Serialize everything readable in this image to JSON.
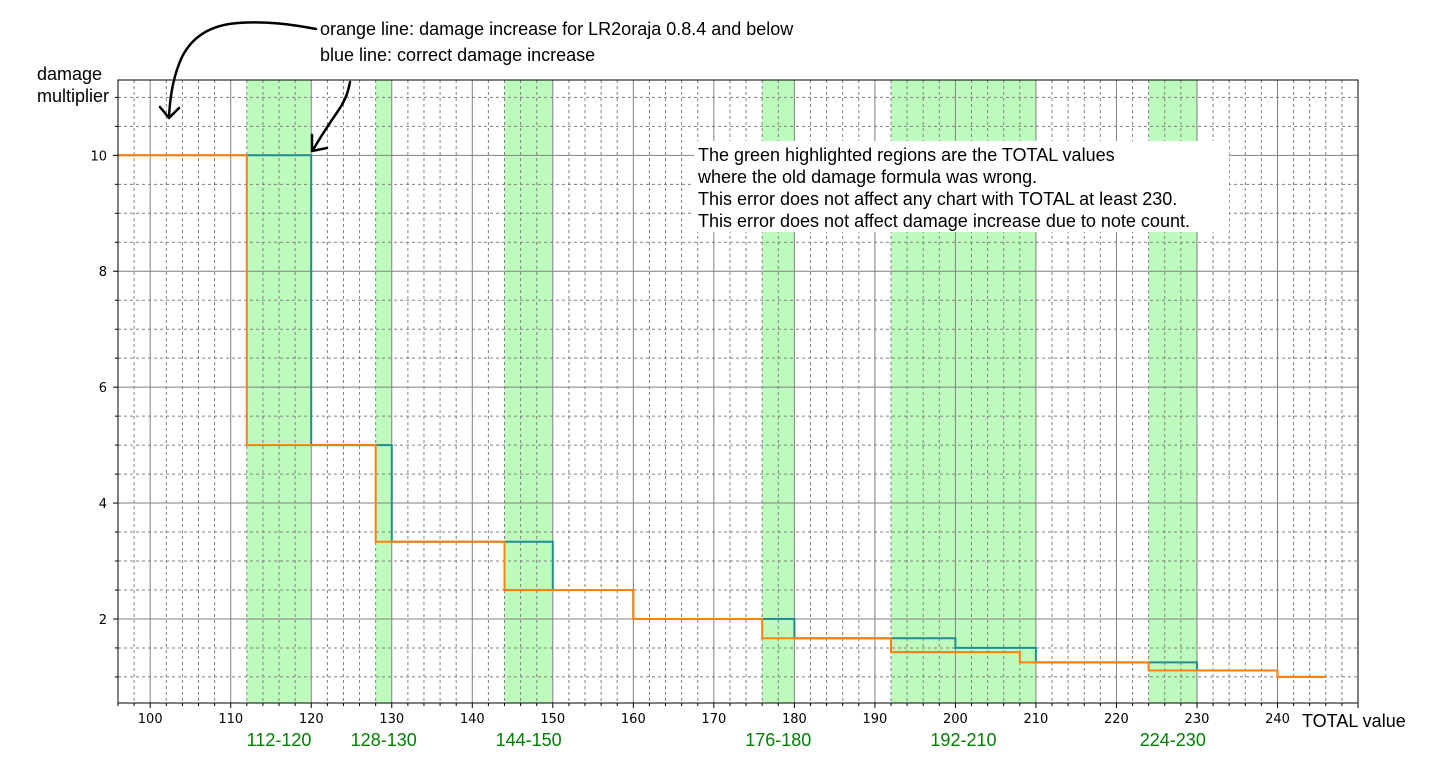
{
  "colors": {
    "orange": "#ff7f0e",
    "blue": "#1f8f8f",
    "highlight": "#bdfcbd",
    "region_label": "#008000",
    "grid_major": "#808080",
    "grid_minor": "#808080"
  },
  "annotations": {
    "orange_note": "orange line: damage increase for LR2oraja 0.8.4 and below",
    "blue_note": "blue line: correct damage increase",
    "arrow_icon": "hand-drawn-arrow-icon"
  },
  "note": {
    "lines": [
      "The green highlighted regions are the TOTAL values",
      "where the old damage formula was wrong.",
      "This error does not affect any chart with TOTAL at least 230.",
      "This error does not affect damage increase due to note count."
    ]
  },
  "chart_data": {
    "type": "line",
    "step": "post",
    "xlabel": "TOTAL value",
    "ylabel": "damage\nmultiplier",
    "xlim": [
      96,
      250
    ],
    "ylim": [
      0.55,
      11.3
    ],
    "x_major_ticks": [
      100,
      110,
      120,
      130,
      140,
      150,
      160,
      170,
      180,
      190,
      200,
      210,
      220,
      230,
      240
    ],
    "y_major_ticks": [
      2,
      4,
      6,
      8,
      10
    ],
    "grid": true,
    "highlight_regions": [
      {
        "label": "112-120",
        "from": 112,
        "to": 120
      },
      {
        "label": "128-130",
        "from": 128,
        "to": 130
      },
      {
        "label": "144-150",
        "from": 144,
        "to": 150
      },
      {
        "label": "176-180",
        "from": 176,
        "to": 180
      },
      {
        "label": "192-210",
        "from": 192,
        "to": 210
      },
      {
        "label": "224-230",
        "from": 224,
        "to": 230
      }
    ],
    "series": [
      {
        "color": "#1f8f8f",
        "points": [
          [
            96,
            10
          ],
          [
            120,
            10
          ],
          [
            120,
            5
          ],
          [
            130,
            5
          ],
          [
            130,
            3.333
          ],
          [
            144,
            3.333
          ],
          [
            150,
            3.333
          ],
          [
            150,
            2.5
          ],
          [
            160,
            2.5
          ],
          [
            160,
            2
          ],
          [
            180,
            2
          ],
          [
            180,
            1.667
          ],
          [
            192,
            1.667
          ],
          [
            200,
            1.667
          ],
          [
            200,
            1.5
          ],
          [
            210,
            1.5
          ],
          [
            210,
            1.25
          ],
          [
            224,
            1.25
          ],
          [
            230,
            1.25
          ],
          [
            230,
            1.111
          ],
          [
            240,
            1.111
          ],
          [
            240,
            1
          ],
          [
            246,
            1
          ]
        ]
      },
      {
        "color": "#ff7f0e",
        "points": [
          [
            96,
            10
          ],
          [
            112,
            10
          ],
          [
            112,
            5
          ],
          [
            128,
            5
          ],
          [
            128,
            3.333
          ],
          [
            144,
            3.333
          ],
          [
            144,
            2.5
          ],
          [
            160,
            2.5
          ],
          [
            160,
            2
          ],
          [
            176,
            2
          ],
          [
            176,
            1.667
          ],
          [
            192,
            1.667
          ],
          [
            192,
            1.429
          ],
          [
            208,
            1.429
          ],
          [
            208,
            1.25
          ],
          [
            224,
            1.25
          ],
          [
            224,
            1.111
          ],
          [
            240,
            1.111
          ],
          [
            240,
            1
          ],
          [
            246,
            1
          ]
        ]
      }
    ]
  }
}
